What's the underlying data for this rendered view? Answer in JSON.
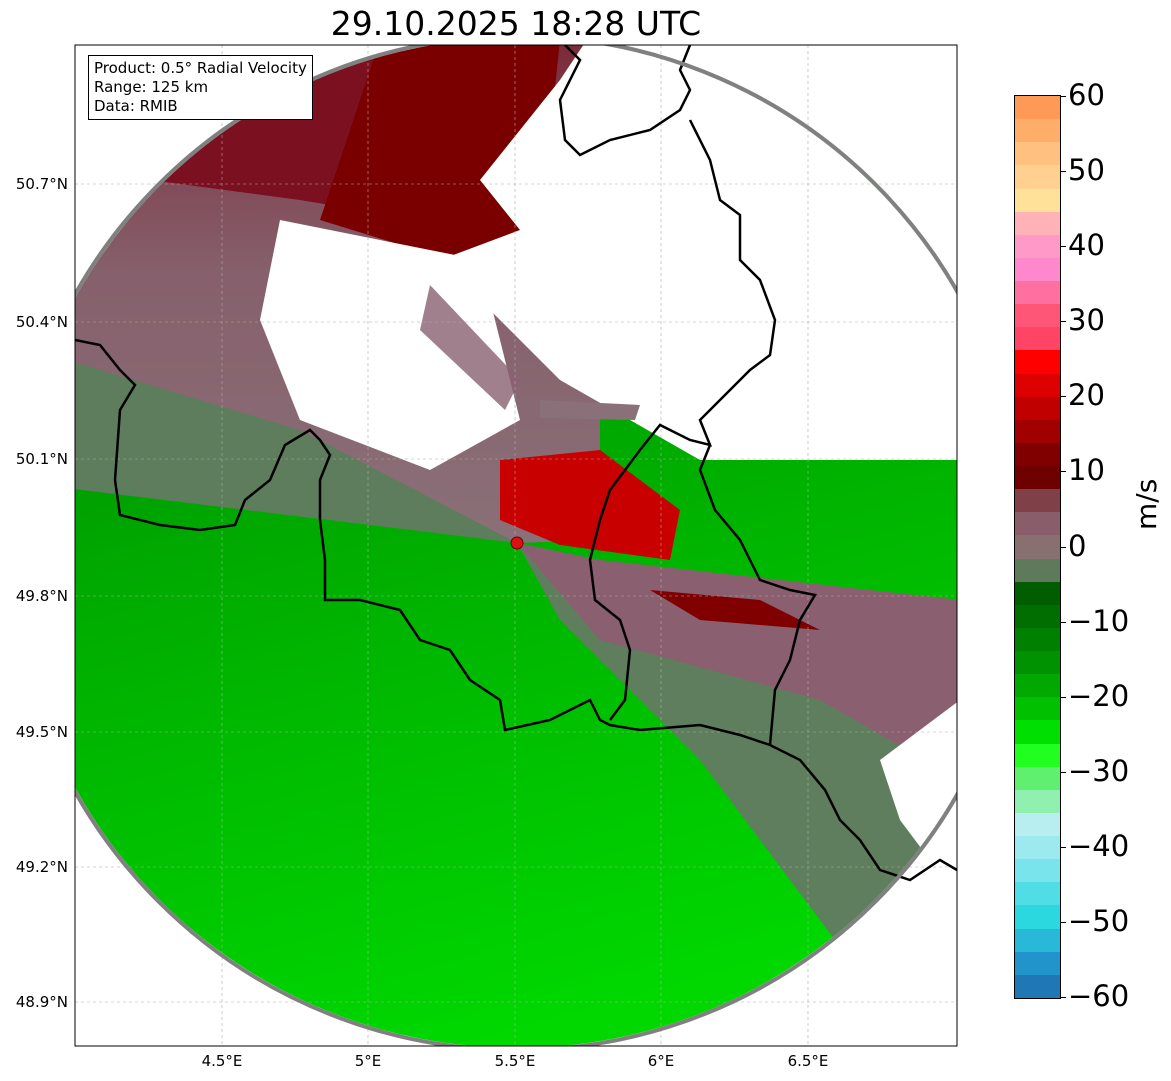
{
  "title": "29.10.2025 18:28 UTC",
  "info_box": {
    "product": "Product: 0.5° Radial Velocity",
    "range": "Range: 125 km",
    "data": "Data: RMIB"
  },
  "axes": {
    "lat_ticks": [
      "50.7°N",
      "50.4°N",
      "50.1°N",
      "49.8°N",
      "49.5°N",
      "49.2°N",
      "48.9°N"
    ],
    "lon_ticks": [
      "4.5°E",
      "5°E",
      "5.5°E",
      "6°E",
      "6.5°E"
    ]
  },
  "colorbar": {
    "unit": "m/s",
    "range": [
      -60,
      60
    ],
    "tick_labels": [
      "60",
      "50",
      "40",
      "30",
      "20",
      "10",
      "0",
      "−10",
      "−20",
      "−30",
      "−40",
      "−50",
      "−60"
    ],
    "colors": [
      "#ff9955",
      "#ffae6a",
      "#ffc080",
      "#ffd090",
      "#ffe19a",
      "#ffb3b8",
      "#ff99c8",
      "#ff88cc",
      "#ff6fa0",
      "#ff5577",
      "#ff4466",
      "#ff0000",
      "#dd0000",
      "#c00000",
      "#a00000",
      "#800000",
      "#6e0000",
      "#804048",
      "#8a5d6a",
      "#887070",
      "#5e7a5a",
      "#005e00",
      "#006e00",
      "#008000",
      "#009200",
      "#00a800",
      "#00c000",
      "#00e000",
      "#20ff20",
      "#60f070",
      "#90f0b0",
      "#b8eef0",
      "#9ceaf0",
      "#7ae4ec",
      "#50dde6",
      "#2cd8e0",
      "#28b8d8",
      "#2294cc",
      "#1f77b4"
    ]
  },
  "radar_site_color": "#dd1111"
}
